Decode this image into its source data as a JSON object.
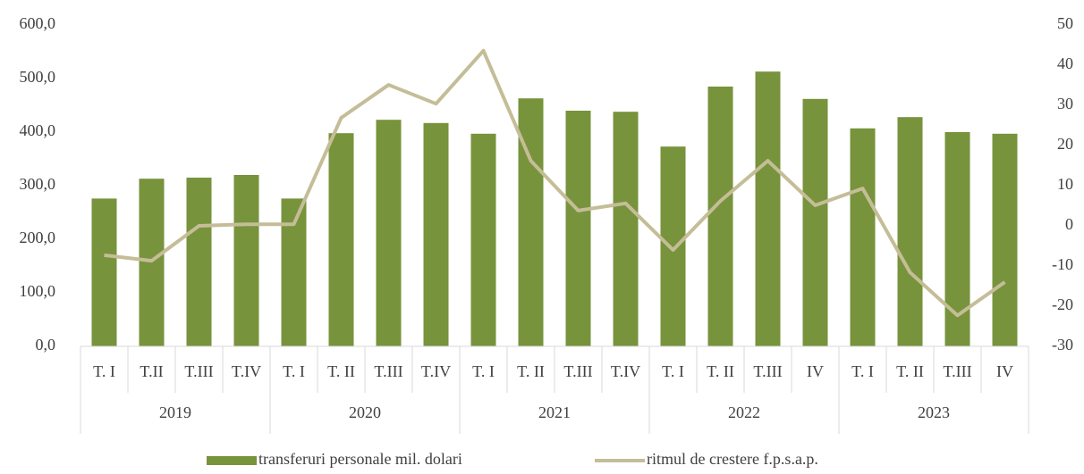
{
  "chart_data": {
    "type": "bar_line",
    "categories": [
      "T. I",
      "T.II",
      "T.III",
      "T.IV",
      "T. I",
      "T. II",
      "T.III",
      "T.IV",
      "T. I",
      "T. II",
      "T.III",
      "T.IV",
      "T. I",
      "T. II",
      "T.III",
      "IV",
      "T. I",
      "T. II",
      "T.III",
      "IV"
    ],
    "groups": [
      "2019",
      "2020",
      "2021",
      "2022",
      "2023"
    ],
    "series": [
      {
        "name": "transferuri personale mil. dolari",
        "color": "#77933c",
        "type": "bar",
        "values": [
          276,
          313,
          315,
          320,
          276,
          398,
          423,
          417,
          397,
          463,
          440,
          438,
          373,
          485,
          513,
          462,
          407,
          428,
          400,
          397
        ]
      },
      {
        "name": "ritmul de crestere f.p.s.a.p.",
        "color": "#c4bd97",
        "type": "line",
        "axis": "y2",
        "values": [
          -7.3,
          -8.7,
          0,
          0.4,
          0.4,
          26.9,
          35.1,
          30.4,
          43.6,
          16.2,
          3.8,
          5.6,
          -6,
          6.2,
          16.2,
          5.1,
          9.3,
          -11.6,
          -22.3,
          -14
        ]
      }
    ],
    "ylim": [
      0,
      600
    ],
    "yticks": [
      {
        "value": 0,
        "label": "0,0"
      },
      {
        "value": 100,
        "label": "100,0"
      },
      {
        "value": 200,
        "label": "200,0"
      },
      {
        "value": 300,
        "label": "300,0"
      },
      {
        "value": 400,
        "label": "400,0"
      },
      {
        "value": 500,
        "label": "500,0"
      },
      {
        "value": 600,
        "label": "600,0"
      }
    ],
    "y2lim": [
      -30,
      50
    ],
    "y2ticks": [
      -30,
      -20,
      -10,
      0,
      10,
      20,
      30,
      40,
      50
    ],
    "legend": "bottom"
  }
}
